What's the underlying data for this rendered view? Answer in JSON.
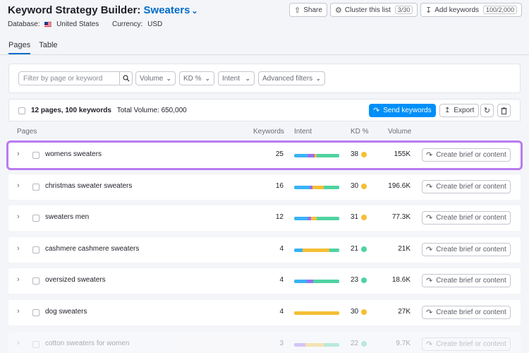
{
  "header": {
    "title_prefix": "Keyword Strategy Builder:",
    "project_name": "Sweaters",
    "database_label": "Database:",
    "database_value": "United States",
    "currency_label": "Currency:",
    "currency_value": "USD"
  },
  "toolbar": {
    "share_label": "Share",
    "cluster_label": "Cluster this list",
    "cluster_count": "3/30",
    "add_keywords_label": "Add keywords",
    "add_keywords_count": "100/2,000"
  },
  "tabs": [
    {
      "label": "Pages",
      "active": true
    },
    {
      "label": "Table",
      "active": false
    }
  ],
  "filters": {
    "search_placeholder": "Filter by page or keyword",
    "volume": "Volume",
    "kd": "KD %",
    "intent": "Intent",
    "advanced": "Advanced filters"
  },
  "table_toolbar": {
    "pages_count": "12 pages, 100 keywords",
    "total_volume": "Total Volume: 650,000",
    "send_label": "Send keywords",
    "export_label": "Export"
  },
  "columns": {
    "pages": "Pages",
    "keywords": "Keywords",
    "intent": "Intent",
    "kd": "KD %",
    "volume": "Volume"
  },
  "rows": [
    {
      "name": "womens sweaters",
      "keywords": "25",
      "kd": "38",
      "kd_color": "#f5bf35",
      "volume": "155K",
      "brief": "Create brief or content",
      "intent": [
        {
          "c": "#3ab2f5",
          "w": 0.3
        },
        {
          "c": "#9a6ef0",
          "w": 0.15
        },
        {
          "c": "#f5bf35",
          "w": 0.05
        },
        {
          "c": "#4fd3a0",
          "w": 0.5
        }
      ]
    },
    {
      "name": "christmas sweater sweaters",
      "keywords": "16",
      "kd": "30",
      "kd_color": "#f5bf35",
      "volume": "196.6K",
      "brief": "Create brief or content",
      "intent": [
        {
          "c": "#3ab2f5",
          "w": 0.35
        },
        {
          "c": "#9a6ef0",
          "w": 0.05
        },
        {
          "c": "#f5bf35",
          "w": 0.25
        },
        {
          "c": "#4fd3a0",
          "w": 0.35
        }
      ]
    },
    {
      "name": "sweaters men",
      "keywords": "12",
      "kd": "31",
      "kd_color": "#f5bf35",
      "volume": "77.3K",
      "brief": "Create brief or content",
      "intent": [
        {
          "c": "#3ab2f5",
          "w": 0.3
        },
        {
          "c": "#9a6ef0",
          "w": 0.08
        },
        {
          "c": "#f5bf35",
          "w": 0.12
        },
        {
          "c": "#4fd3a0",
          "w": 0.5
        }
      ]
    },
    {
      "name": "cashmere cashmere sweaters",
      "keywords": "4",
      "kd": "21",
      "kd_color": "#4fd3a0",
      "volume": "21K",
      "brief": "Create brief or content",
      "intent": [
        {
          "c": "#3ab2f5",
          "w": 0.18
        },
        {
          "c": "#f5bf35",
          "w": 0.6
        },
        {
          "c": "#4fd3a0",
          "w": 0.22
        }
      ]
    },
    {
      "name": "oversized sweaters",
      "keywords": "4",
      "kd": "23",
      "kd_color": "#4fd3a0",
      "volume": "18.6K",
      "brief": "Create brief or content",
      "intent": [
        {
          "c": "#3ab2f5",
          "w": 0.28
        },
        {
          "c": "#9a6ef0",
          "w": 0.14
        },
        {
          "c": "#4fd3a0",
          "w": 0.58
        }
      ]
    },
    {
      "name": "dog sweaters",
      "keywords": "4",
      "kd": "30",
      "kd_color": "#f5bf35",
      "volume": "27K",
      "brief": "Create brief or content",
      "intent": [
        {
          "c": "#f5bf35",
          "w": 1.0
        }
      ]
    },
    {
      "name": "cotton sweaters for women",
      "keywords": "3",
      "kd": "22",
      "kd_color": "#4fd3a0",
      "volume": "9.7K",
      "brief": "Create brief or content",
      "intent": [
        {
          "c": "#9a6ef0",
          "w": 0.25
        },
        {
          "c": "#f5bf35",
          "w": 0.4
        },
        {
          "c": "#4fd3a0",
          "w": 0.35
        }
      ]
    }
  ]
}
